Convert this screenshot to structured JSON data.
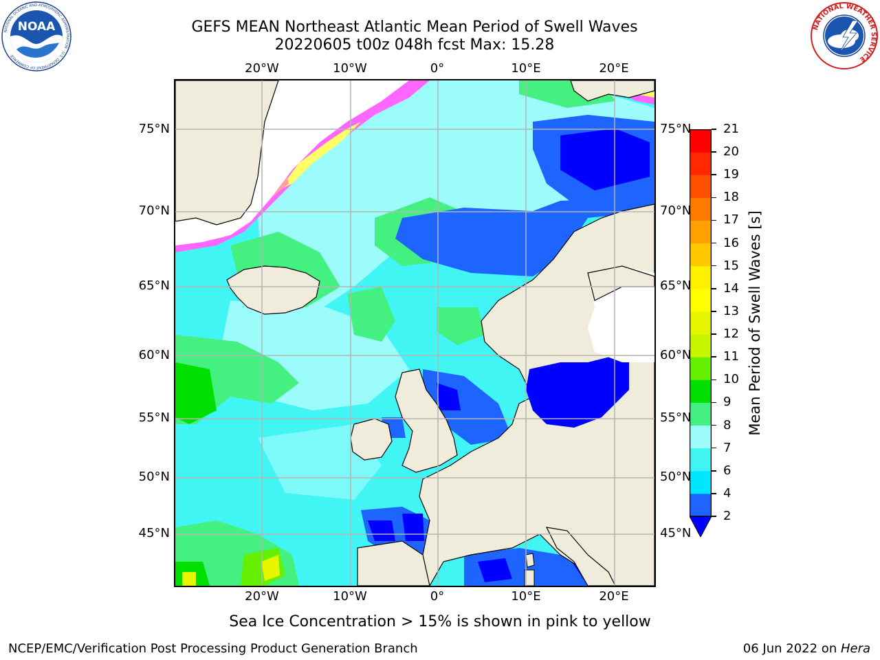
{
  "title": {
    "line1": "GEFS MEAN Northeast Atlantic Mean Period of Swell Waves",
    "line2": "20220605 t00z 048h fcst   Max: 15.28"
  },
  "map": {
    "lon_labels": [
      "20°W",
      "10°W",
      "0°",
      "10°E",
      "20°E"
    ],
    "lat_labels": [
      "75°N",
      "70°N",
      "65°N",
      "60°N",
      "55°N",
      "50°N",
      "45°N"
    ],
    "land_color": "#efecdc",
    "grid_color": "#b4b4b4",
    "ice_colors": [
      "#ff66ff",
      "#ffa0a0",
      "#ffff66"
    ]
  },
  "colorbar": {
    "label": "Mean Period of Swell Waves [s]",
    "ticks": [
      "2",
      "4",
      "6",
      "7",
      "8",
      "9",
      "10",
      "11",
      "12",
      "13",
      "14",
      "15",
      "16",
      "17",
      "18",
      "19",
      "20",
      "21"
    ],
    "colors": [
      "#1e64ff",
      "#00e6ff",
      "#40f4f4",
      "#9cfcfc",
      "#44f080",
      "#00e000",
      "#64f000",
      "#c8f500",
      "#e6f500",
      "#ffff00",
      "#fff000",
      "#ffc800",
      "#ffa000",
      "#ff7800",
      "#ff5000",
      "#ff2800",
      "#ff0000"
    ],
    "under_color": "#0000ff"
  },
  "caption": "Sea Ice Concentration > 15% is shown in pink to yellow",
  "footer": {
    "left": "NCEP/EMC/Verification Post Processing Product Generation Branch",
    "right_prefix": "06 Jun 2022 on ",
    "right_italic": "Hera"
  },
  "logos": {
    "noaa": "NOAA",
    "noaa_ring": "NATIONAL OCEANIC AND ATMOSPHERIC ADMINISTRATION · U.S. DEPARTMENT OF COMMERCE",
    "nws_ring": "NATIONAL WEATHER SERVICE"
  }
}
